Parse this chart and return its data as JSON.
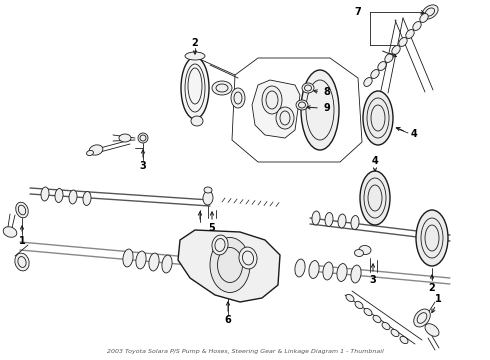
{
  "title": "2003 Toyota Solara P/S Pump & Hoses, Steering Gear & Linkage Diagram 1 - Thumbnail",
  "background_color": "#ffffff",
  "line_color": "#1a1a1a",
  "label_color": "#000000",
  "fig_width": 4.9,
  "fig_height": 3.6,
  "dpi": 100
}
